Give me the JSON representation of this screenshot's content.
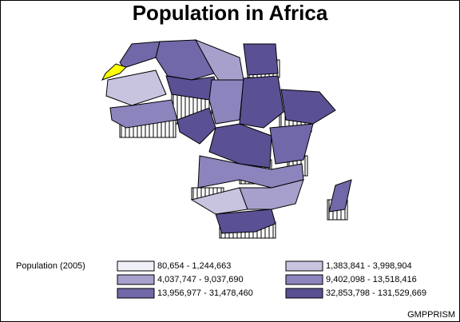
{
  "title": "Population in Africa",
  "legend": {
    "label": "Population (2005)",
    "items": [
      {
        "label": "80,654 - 1,244,663",
        "color": "#f0f0f8"
      },
      {
        "label": "1,383,841 - 3,998,904",
        "color": "#c8c4e0"
      },
      {
        "label": "4,037,747 - 9,037,690",
        "color": "#a8a0cc"
      },
      {
        "label": "9,402,098 - 13,518,416",
        "color": "#8c84bc"
      },
      {
        "label": "13,956,977 - 31,478,460",
        "color": "#7068a8"
      },
      {
        "label": "32,853,798 - 131,529,669",
        "color": "#5a5094"
      }
    ]
  },
  "footnote": "GMPPRISM"
}
